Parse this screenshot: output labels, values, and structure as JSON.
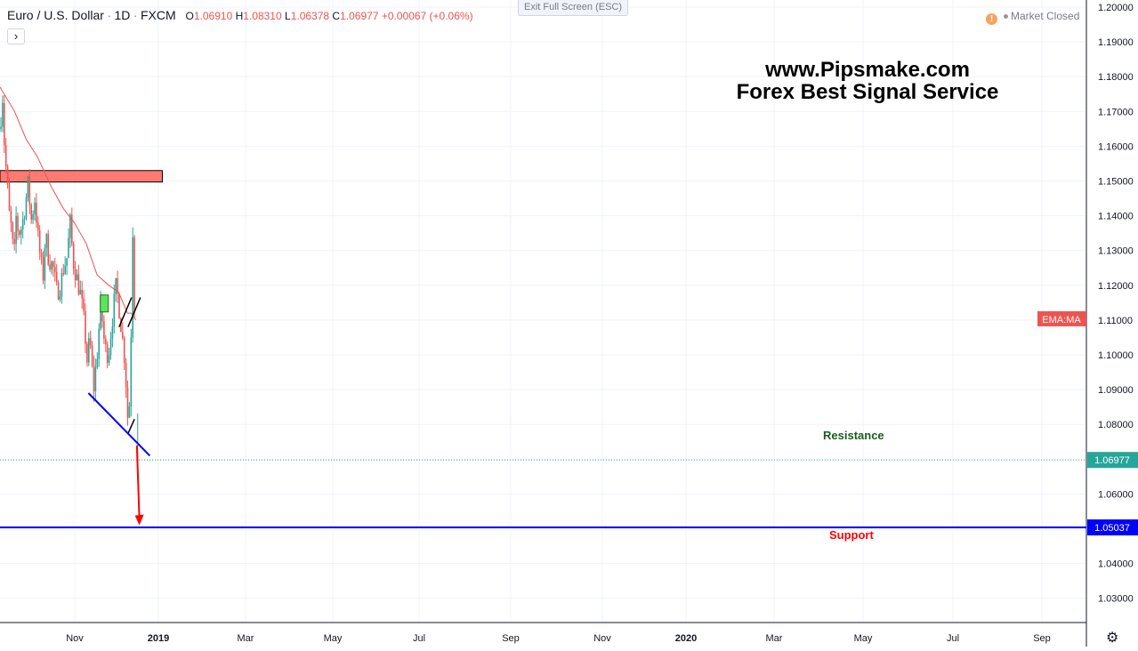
{
  "header": {
    "symbol": "Euro / U.S. Dollar",
    "interval": "1D",
    "exchange": "FXCM",
    "o_label": "O",
    "o_value": "1.06910",
    "h_label": "H",
    "h_value": "1.08310",
    "l_label": "L",
    "l_value": "1.06378",
    "c_label": "C",
    "c_value": "1.06977",
    "change": "+0.00067 (+0.06%)",
    "expand_icon": "chevron-right-icon",
    "expand_label": "›"
  },
  "exit_fullscreen": "Exit Full Screen (ESC)",
  "market_status": {
    "icon": "warning-icon",
    "icon_label": "!",
    "text": "Market Closed"
  },
  "watermark": {
    "line1": "www.Pipsmake.com",
    "line2": "Forex Best Signal Service"
  },
  "colors": {
    "up": "#26a69a",
    "down": "#ef5350",
    "ema": "#ef5350",
    "trendline": "#0000ff",
    "resistance_zone": "#ff7a72",
    "support_line": "#0000ff",
    "arrow": "#ff0000"
  },
  "price_axis": {
    "ticks": [
      "1.20000",
      "1.19000",
      "1.18000",
      "1.17000",
      "1.16000",
      "1.15000",
      "1.14000",
      "1.13000",
      "1.12000",
      "1.11000",
      "1.10000",
      "1.09000",
      "1.08000",
      "1.07000",
      "1.06000",
      "1.05000",
      "1.04000",
      "1.03000"
    ],
    "indicator_label": "EMA:MA",
    "last_price_label": "1.06977",
    "support_price_label": "1.05037"
  },
  "time_axis": {
    "ticks": [
      "Nov",
      "2019",
      "Mar",
      "May",
      "Jul",
      "Sep",
      "Nov",
      "2020",
      "Mar",
      "May",
      "Jul",
      "Sep"
    ],
    "settings_icon": "gear-icon",
    "settings_label": "⚙"
  },
  "annotations": {
    "resistance": "Resistance",
    "support": "Support"
  },
  "chart_data": {
    "type": "candlestick",
    "title": "Euro / U.S. Dollar, 1D, FXCM",
    "ylim": [
      1.0235,
      1.2
    ],
    "x_range": [
      "2018-09-17",
      "2020-09-30"
    ],
    "ohlc_last": {
      "open": 1.0691,
      "high": 1.0831,
      "low": 1.06378,
      "close": 1.06977
    },
    "series": [
      {
        "name": "EMA:MA",
        "points": [
          [
            "2018-09-17",
            1.177
          ],
          [
            "2018-11-15",
            1.17
          ],
          [
            "2019-01-01",
            1.162
          ],
          [
            "2019-02-15",
            1.157
          ],
          [
            "2019-04-15",
            1.148
          ],
          [
            "2019-06-01",
            1.142
          ],
          [
            "2019-07-15",
            1.138
          ],
          [
            "2019-09-01",
            1.132
          ],
          [
            "2019-10-15",
            1.123
          ],
          [
            "2019-12-01",
            1.12
          ],
          [
            "2020-01-10",
            1.118
          ],
          [
            "2020-02-15",
            1.112
          ],
          [
            "2020-03-01",
            1.112
          ],
          [
            "2020-03-20",
            1.11
          ]
        ]
      },
      {
        "name": "price",
        "points": [
          [
            "2018-09-17",
            1.165
          ],
          [
            "2018-09-27",
            1.175
          ],
          [
            "2018-10-05",
            1.16
          ],
          [
            "2018-10-15",
            1.15
          ],
          [
            "2018-10-25",
            1.14
          ],
          [
            "2018-11-05",
            1.135
          ],
          [
            "2018-11-12",
            1.125
          ],
          [
            "2018-11-20",
            1.14
          ],
          [
            "2018-12-01",
            1.135
          ],
          [
            "2018-12-15",
            1.137
          ],
          [
            "2019-01-01",
            1.145
          ],
          [
            "2019-01-10",
            1.15
          ],
          [
            "2019-01-20",
            1.138
          ],
          [
            "2019-02-05",
            1.145
          ],
          [
            "2019-02-20",
            1.132
          ],
          [
            "2019-03-10",
            1.122
          ],
          [
            "2019-03-20",
            1.135
          ],
          [
            "2019-04-01",
            1.128
          ],
          [
            "2019-04-20",
            1.125
          ],
          [
            "2019-05-05",
            1.118
          ],
          [
            "2019-05-20",
            1.12
          ],
          [
            "2019-06-01",
            1.125
          ],
          [
            "2019-06-15",
            1.128
          ],
          [
            "2019-06-28",
            1.138
          ],
          [
            "2019-07-10",
            1.127
          ],
          [
            "2019-07-25",
            1.122
          ],
          [
            "2019-08-10",
            1.117
          ],
          [
            "2019-08-25",
            1.108
          ],
          [
            "2019-09-05",
            1.098
          ],
          [
            "2019-09-15",
            1.105
          ],
          [
            "2019-10-01",
            1.09
          ],
          [
            "2019-10-15",
            1.1
          ],
          [
            "2019-10-30",
            1.115
          ],
          [
            "2019-11-15",
            1.102
          ],
          [
            "2019-11-30",
            1.1
          ],
          [
            "2019-12-15",
            1.11
          ],
          [
            "2019-12-31",
            1.12
          ],
          [
            "2020-01-15",
            1.112
          ],
          [
            "2020-01-25",
            1.105
          ],
          [
            "2020-02-05",
            1.098
          ],
          [
            "2020-02-15",
            1.083
          ],
          [
            "2020-02-20",
            1.079
          ],
          [
            "2020-02-28",
            1.1
          ],
          [
            "2020-03-05",
            1.128
          ],
          [
            "2020-03-09",
            1.142
          ],
          [
            "2020-03-12",
            1.125
          ],
          [
            "2020-03-17",
            1.1
          ],
          [
            "2020-03-20",
            1.072
          ]
        ]
      }
    ],
    "resistance_zone": {
      "low": 1.1497,
      "high": 1.153,
      "from": "2018-09-17",
      "to": "2020-07-05"
    },
    "support_level": 1.05037,
    "last_price": 1.06977,
    "trendline": {
      "from": [
        "2019-09-10",
        1.089
      ],
      "to": [
        "2020-05-15",
        1.071
      ]
    },
    "arrow": {
      "from": [
        "2020-03-24",
        1.074
      ],
      "to": [
        "2020-04-03",
        1.051
      ]
    }
  }
}
